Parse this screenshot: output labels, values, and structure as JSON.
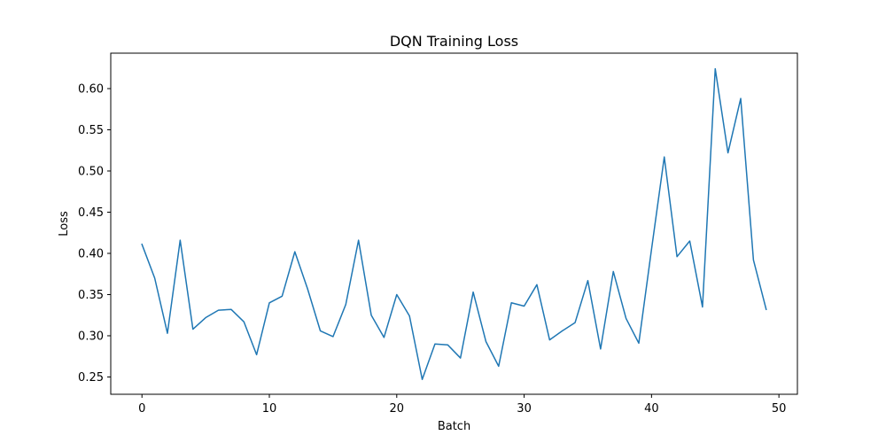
{
  "chart_data": {
    "type": "line",
    "title": "DQN Training Loss",
    "xlabel": "Batch",
    "ylabel": "Loss",
    "xlim": [
      -2.45,
      51.45
    ],
    "ylim": [
      0.229,
      0.643
    ],
    "x_ticks": [
      0,
      10,
      20,
      30,
      40,
      50
    ],
    "y_ticks": [
      0.25,
      0.3,
      0.35,
      0.4,
      0.45,
      0.5,
      0.55,
      0.6
    ],
    "grid": false,
    "legend": "none",
    "colors": {
      "line": "#1f77b4",
      "axes": "#000000"
    },
    "series": [
      {
        "x": [
          0,
          1,
          2,
          3,
          4,
          5,
          6,
          7,
          8,
          9,
          10,
          11,
          12,
          13,
          14,
          15,
          16,
          17,
          18,
          19,
          20,
          21,
          22,
          23,
          24,
          25,
          26,
          27,
          28,
          29,
          30,
          31,
          32,
          33,
          34,
          35,
          36,
          37,
          38,
          39,
          40,
          41,
          42,
          43,
          44,
          45,
          46,
          47,
          48,
          49
        ],
        "values": [
          0.411,
          0.37,
          0.303,
          0.416,
          0.308,
          0.322,
          0.331,
          0.332,
          0.317,
          0.277,
          0.34,
          0.348,
          0.402,
          0.357,
          0.306,
          0.299,
          0.338,
          0.416,
          0.325,
          0.298,
          0.35,
          0.324,
          0.247,
          0.29,
          0.289,
          0.273,
          0.353,
          0.293,
          0.263,
          0.34,
          0.336,
          0.362,
          0.295,
          0.306,
          0.316,
          0.367,
          0.284,
          0.378,
          0.321,
          0.291,
          0.405,
          0.517,
          0.396,
          0.415,
          0.335,
          0.624,
          0.522,
          0.588,
          0.392,
          0.332
        ]
      }
    ]
  }
}
